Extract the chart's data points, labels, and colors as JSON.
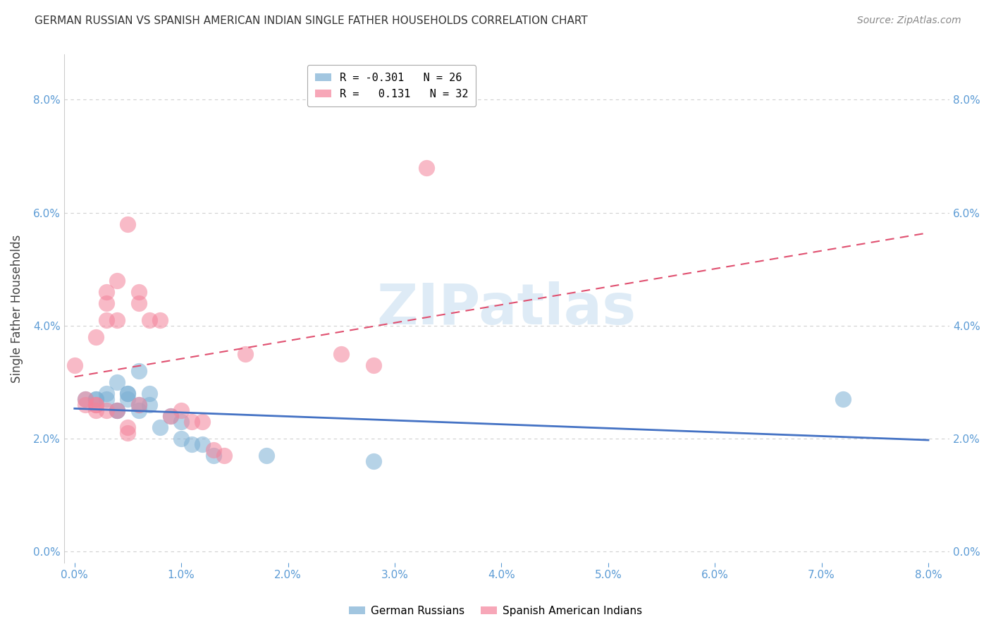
{
  "title": "GERMAN RUSSIAN VS SPANISH AMERICAN INDIAN SINGLE FATHER HOUSEHOLDS CORRELATION CHART",
  "source": "Source: ZipAtlas.com",
  "ylabel": "Single Father Households",
  "xlabel_ticks": [
    0.0,
    0.01,
    0.02,
    0.03,
    0.04,
    0.05,
    0.06,
    0.07,
    0.08
  ],
  "ylabel_ticks": [
    0.0,
    0.02,
    0.04,
    0.06,
    0.08
  ],
  "xlim": [
    -0.001,
    0.082
  ],
  "ylim": [
    -0.002,
    0.088
  ],
  "watermark_text": "ZIPatlas",
  "legend_line1": "R = -0.301   N = 26",
  "legend_line2": "R =   0.131   N = 32",
  "gr_color": "#7bafd4",
  "sai_color": "#f4829a",
  "gr_line_color": "#4472c4",
  "sai_line_color": "#e05070",
  "background_color": "#ffffff",
  "grid_color": "#d0d0d0",
  "german_russian_x": [
    0.001,
    0.002,
    0.002,
    0.003,
    0.003,
    0.004,
    0.004,
    0.004,
    0.005,
    0.005,
    0.005,
    0.006,
    0.006,
    0.006,
    0.007,
    0.007,
    0.008,
    0.009,
    0.01,
    0.01,
    0.011,
    0.012,
    0.013,
    0.018,
    0.028,
    0.072
  ],
  "german_russian_y": [
    0.027,
    0.027,
    0.027,
    0.028,
    0.027,
    0.025,
    0.025,
    0.03,
    0.028,
    0.027,
    0.028,
    0.032,
    0.025,
    0.026,
    0.026,
    0.028,
    0.022,
    0.024,
    0.02,
    0.023,
    0.019,
    0.019,
    0.017,
    0.017,
    0.016,
    0.027
  ],
  "spanish_american_indian_x": [
    0.0,
    0.001,
    0.001,
    0.002,
    0.002,
    0.002,
    0.002,
    0.003,
    0.003,
    0.003,
    0.003,
    0.004,
    0.004,
    0.004,
    0.005,
    0.005,
    0.005,
    0.006,
    0.006,
    0.006,
    0.007,
    0.008,
    0.009,
    0.01,
    0.011,
    0.012,
    0.013,
    0.014,
    0.016,
    0.025,
    0.028,
    0.033
  ],
  "spanish_american_indian_y": [
    0.033,
    0.026,
    0.027,
    0.038,
    0.026,
    0.026,
    0.025,
    0.041,
    0.044,
    0.046,
    0.025,
    0.048,
    0.041,
    0.025,
    0.058,
    0.022,
    0.021,
    0.046,
    0.044,
    0.026,
    0.041,
    0.041,
    0.024,
    0.025,
    0.023,
    0.023,
    0.018,
    0.017,
    0.035,
    0.035,
    0.033,
    0.068
  ]
}
